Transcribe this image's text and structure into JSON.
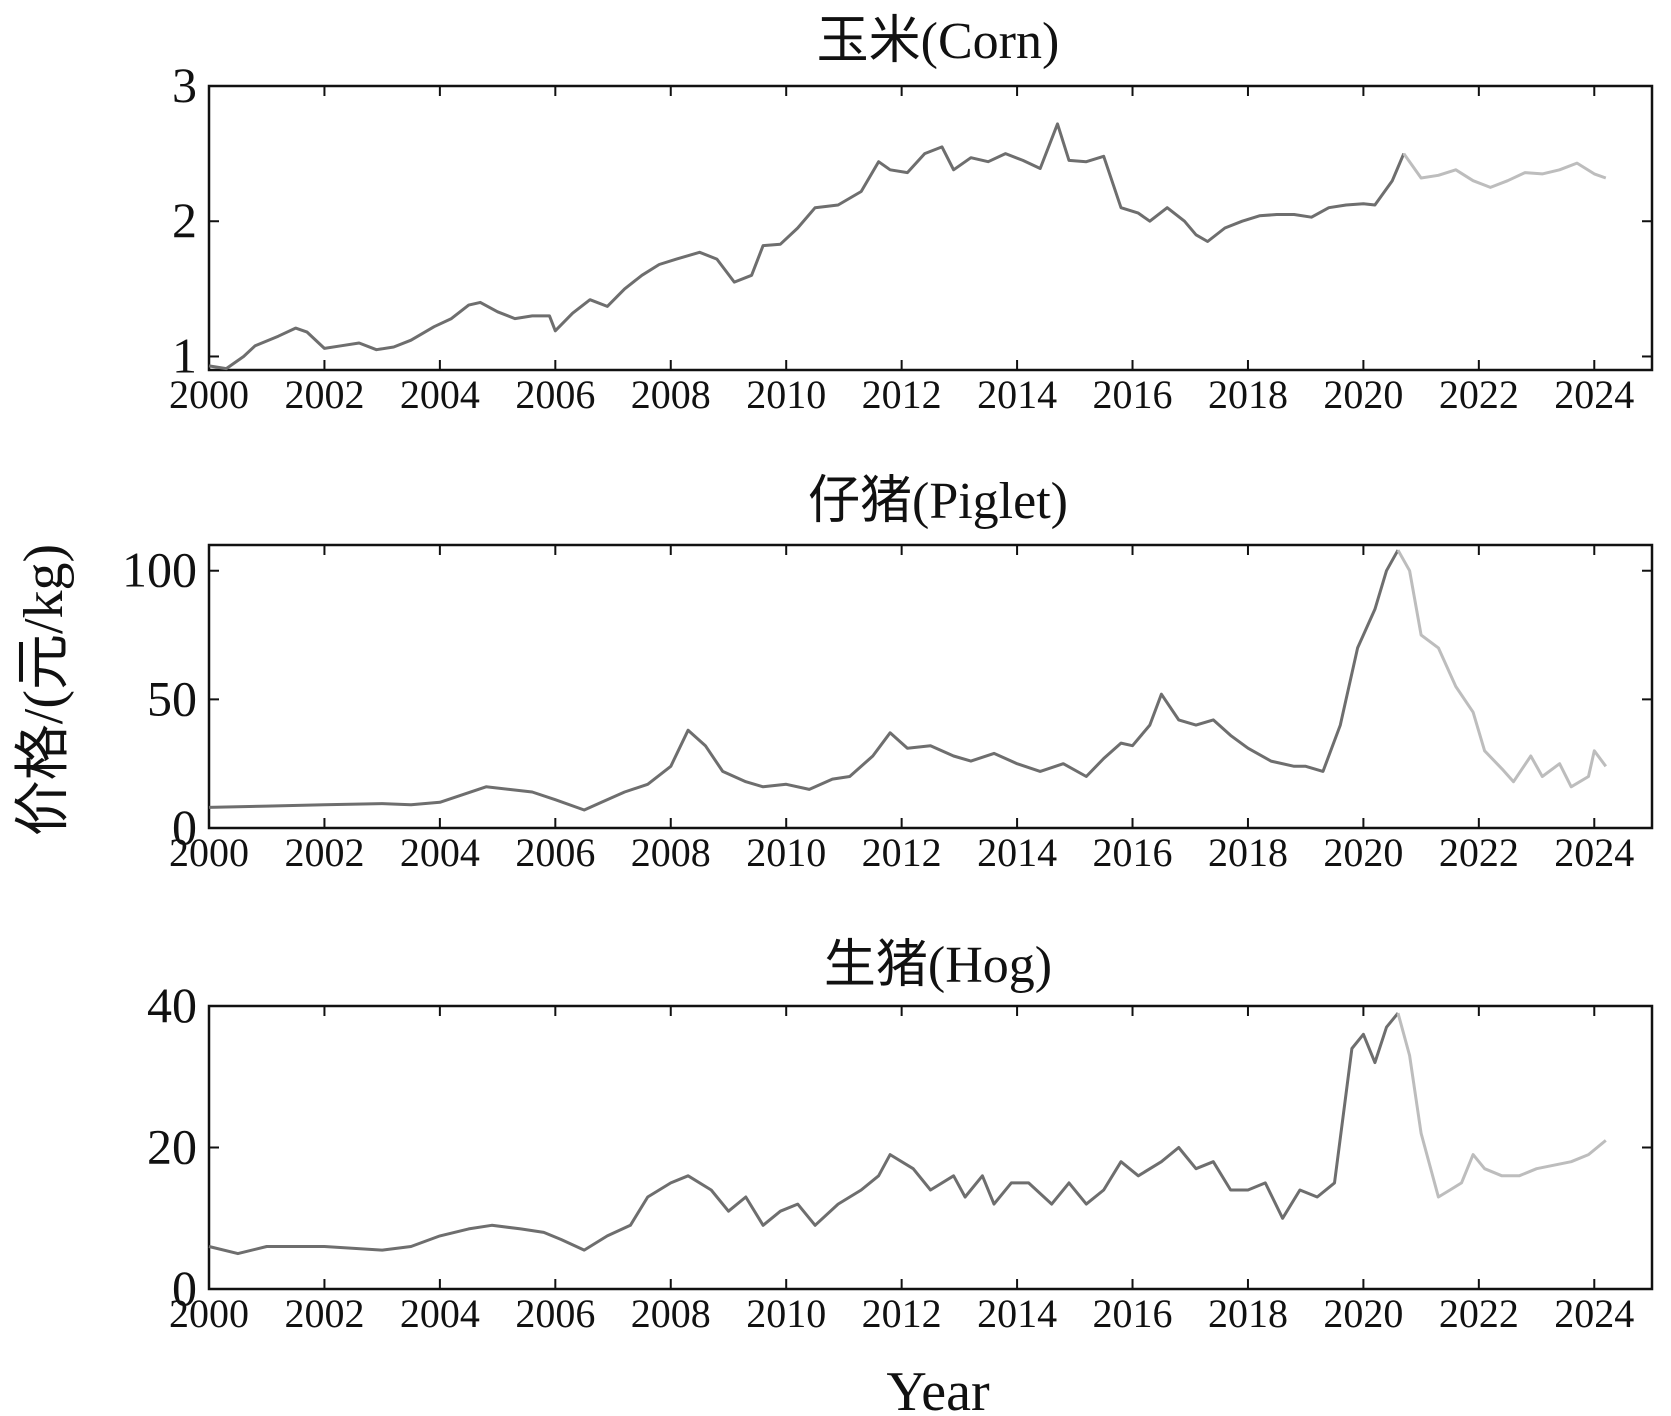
{
  "ylabel": "价格/(元/kg)",
  "xlabel": "Year",
  "chart_data": [
    {
      "type": "line",
      "title": "玉米(Corn)",
      "ylim": [
        0.9,
        3
      ],
      "yticks": [
        1,
        2,
        3
      ],
      "xlim": [
        2000,
        2025
      ],
      "xticks": [
        2000,
        2002,
        2004,
        2006,
        2008,
        2010,
        2012,
        2014,
        2016,
        2018,
        2020,
        2022,
        2024
      ],
      "series": [
        {
          "color": "#6e6e6e",
          "x": [
            2000.0,
            2000.3,
            2000.6,
            2000.8,
            2001.2,
            2001.5,
            2001.7,
            2002.0,
            2002.3,
            2002.6,
            2002.9,
            2003.2,
            2003.5,
            2003.9,
            2004.2,
            2004.5,
            2004.7,
            2005.0,
            2005.3,
            2005.6,
            2005.9,
            2006.0,
            2006.3,
            2006.6,
            2006.9,
            2007.2,
            2007.5,
            2007.8,
            2008.1,
            2008.5,
            2008.8,
            2009.1,
            2009.4,
            2009.6,
            2009.9,
            2010.2,
            2010.5,
            2010.9,
            2011.3,
            2011.6,
            2011.8,
            2012.1,
            2012.4,
            2012.7,
            2012.9,
            2013.2,
            2013.5,
            2013.8,
            2014.1,
            2014.4,
            2014.7,
            2014.9,
            2015.2,
            2015.5,
            2015.8,
            2016.1,
            2016.3,
            2016.6,
            2016.9,
            2017.1,
            2017.3,
            2017.6,
            2017.9,
            2018.2,
            2018.5,
            2018.8,
            2019.1,
            2019.4,
            2019.7,
            2020.0,
            2020.2,
            2020.5,
            2020.7
          ],
          "y": [
            0.93,
            0.91,
            1.0,
            1.08,
            1.15,
            1.21,
            1.18,
            1.06,
            1.08,
            1.1,
            1.05,
            1.07,
            1.12,
            1.22,
            1.28,
            1.38,
            1.4,
            1.33,
            1.28,
            1.3,
            1.3,
            1.19,
            1.32,
            1.42,
            1.37,
            1.5,
            1.6,
            1.68,
            1.72,
            1.77,
            1.72,
            1.55,
            1.6,
            1.82,
            1.83,
            1.95,
            2.1,
            2.12,
            2.22,
            2.44,
            2.38,
            2.36,
            2.5,
            2.55,
            2.38,
            2.47,
            2.44,
            2.5,
            2.45,
            2.39,
            2.72,
            2.45,
            2.44,
            2.48,
            2.1,
            2.06,
            2.0,
            2.1,
            2.0,
            1.9,
            1.85,
            1.95,
            2.0,
            2.04,
            2.05,
            2.05,
            2.03,
            2.1,
            2.12,
            2.13,
            2.12,
            2.3,
            2.5
          ]
        },
        {
          "color": "#bdbdbd",
          "x": [
            2020.7,
            2021.0,
            2021.3,
            2021.6,
            2021.9,
            2022.2,
            2022.5,
            2022.8,
            2023.1,
            2023.4,
            2023.7,
            2024.0,
            2024.2
          ],
          "y": [
            2.5,
            2.32,
            2.34,
            2.38,
            2.3,
            2.25,
            2.3,
            2.36,
            2.35,
            2.38,
            2.43,
            2.35,
            2.32
          ]
        }
      ]
    },
    {
      "type": "line",
      "title": "仔猪(Piglet)",
      "ylim": [
        0,
        110
      ],
      "yticks": [
        0,
        50,
        100
      ],
      "xlim": [
        2000,
        2025
      ],
      "xticks": [
        2000,
        2002,
        2004,
        2006,
        2008,
        2010,
        2012,
        2014,
        2016,
        2018,
        2020,
        2022,
        2024
      ],
      "series": [
        {
          "color": "#6e6e6e",
          "x": [
            2000.0,
            2001.0,
            2002.0,
            2003.0,
            2003.5,
            2004.0,
            2004.4,
            2004.8,
            2005.2,
            2005.6,
            2006.0,
            2006.5,
            2006.8,
            2007.2,
            2007.6,
            2008.0,
            2008.3,
            2008.6,
            2008.9,
            2009.3,
            2009.6,
            2010.0,
            2010.4,
            2010.8,
            2011.1,
            2011.5,
            2011.8,
            2012.1,
            2012.5,
            2012.9,
            2013.2,
            2013.6,
            2014.0,
            2014.4,
            2014.8,
            2015.2,
            2015.5,
            2015.8,
            2016.0,
            2016.3,
            2016.5,
            2016.8,
            2017.1,
            2017.4,
            2017.7,
            2018.0,
            2018.4,
            2018.8,
            2019.0,
            2019.3,
            2019.6,
            2019.9,
            2020.2,
            2020.4,
            2020.6
          ],
          "y": [
            8,
            8.5,
            9,
            9.5,
            9,
            10,
            13,
            16,
            15,
            14,
            11,
            7,
            10,
            14,
            17,
            24,
            38,
            32,
            22,
            18,
            16,
            17,
            15,
            19,
            20,
            28,
            37,
            31,
            32,
            28,
            26,
            29,
            25,
            22,
            25,
            20,
            27,
            33,
            32,
            40,
            52,
            42,
            40,
            42,
            36,
            31,
            26,
            24,
            24,
            22,
            40,
            70,
            85,
            100,
            108
          ]
        },
        {
          "color": "#bdbdbd",
          "x": [
            2020.6,
            2020.8,
            2021.0,
            2021.3,
            2021.6,
            2021.9,
            2022.1,
            2022.4,
            2022.6,
            2022.9,
            2023.1,
            2023.4,
            2023.6,
            2023.9,
            2024.0,
            2024.2
          ],
          "y": [
            108,
            100,
            75,
            70,
            55,
            45,
            30,
            23,
            18,
            28,
            20,
            25,
            16,
            20,
            30,
            24
          ]
        }
      ]
    },
    {
      "type": "line",
      "title": "生猪(Hog)",
      "ylim": [
        0,
        40
      ],
      "yticks": [
        0,
        20,
        40
      ],
      "xlim": [
        2000,
        2025
      ],
      "xticks": [
        2000,
        2002,
        2004,
        2006,
        2008,
        2010,
        2012,
        2014,
        2016,
        2018,
        2020,
        2022,
        2024
      ],
      "series": [
        {
          "color": "#6e6e6e",
          "x": [
            2000.0,
            2000.5,
            2001.0,
            2002.0,
            2003.0,
            2003.5,
            2004.0,
            2004.5,
            2004.9,
            2005.4,
            2005.8,
            2006.1,
            2006.5,
            2006.9,
            2007.3,
            2007.6,
            2008.0,
            2008.3,
            2008.7,
            2009.0,
            2009.3,
            2009.6,
            2009.9,
            2010.2,
            2010.5,
            2010.9,
            2011.3,
            2011.6,
            2011.8,
            2012.2,
            2012.5,
            2012.9,
            2013.1,
            2013.4,
            2013.6,
            2013.9,
            2014.2,
            2014.6,
            2014.9,
            2015.2,
            2015.5,
            2015.8,
            2016.1,
            2016.5,
            2016.8,
            2017.1,
            2017.4,
            2017.7,
            2018.0,
            2018.3,
            2018.6,
            2018.9,
            2019.2,
            2019.5,
            2019.8,
            2020.0,
            2020.2,
            2020.4,
            2020.6
          ],
          "y": [
            6,
            5,
            6,
            6,
            5.5,
            6,
            7.5,
            8.5,
            9,
            8.5,
            8,
            7,
            5.5,
            7.5,
            9,
            13,
            15,
            16,
            14,
            11,
            13,
            9,
            11,
            12,
            9,
            12,
            14,
            16,
            19,
            17,
            14,
            16,
            13,
            16,
            12,
            15,
            15,
            12,
            15,
            12,
            14,
            18,
            16,
            18,
            20,
            17,
            18,
            14,
            14,
            15,
            10,
            14,
            13,
            15,
            34,
            36,
            32,
            37,
            39
          ]
        },
        {
          "color": "#bdbdbd",
          "x": [
            2020.6,
            2020.8,
            2021.0,
            2021.3,
            2021.5,
            2021.7,
            2021.9,
            2022.1,
            2022.4,
            2022.7,
            2023.0,
            2023.3,
            2023.6,
            2023.9,
            2024.2
          ],
          "y": [
            39,
            33,
            22,
            13,
            14,
            15,
            19,
            17,
            16,
            16,
            17,
            17.5,
            18,
            19,
            21
          ]
        }
      ]
    }
  ]
}
